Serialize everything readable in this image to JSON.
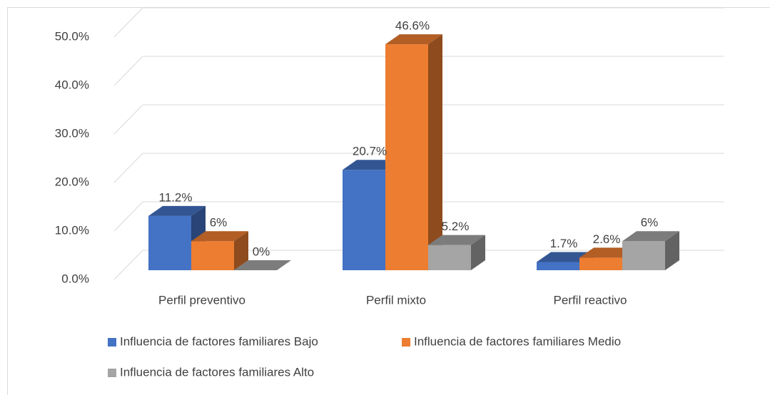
{
  "chart_data": {
    "type": "bar3d",
    "categories": [
      "Perfil preventivo",
      "Perfil mixto",
      "Perfil reactivo"
    ],
    "series": [
      {
        "name": "Influencia de factores familiares Bajo",
        "color": "#4472c4",
        "values": [
          11.2,
          20.7,
          1.7
        ],
        "value_labels": [
          "11.2%",
          "20.7%",
          "1.7%"
        ]
      },
      {
        "name": "Influencia de factores familiares Medio",
        "color": "#ed7d31",
        "values": [
          6,
          46.6,
          2.6
        ],
        "value_labels": [
          "6%",
          "46.6%",
          "2.6%"
        ]
      },
      {
        "name": "Influencia de factores familiares Alto",
        "color": "#a5a5a5",
        "values": [
          0,
          5.2,
          6
        ],
        "value_labels": [
          "0%",
          "5.2%",
          "6%"
        ]
      }
    ],
    "ylim": [
      0,
      50
    ],
    "yticks": [
      {
        "value": 0,
        "label": "0.0%"
      },
      {
        "value": 10,
        "label": "10.0%"
      },
      {
        "value": 20,
        "label": "20.0%"
      },
      {
        "value": 30,
        "label": "30.0%"
      },
      {
        "value": 40,
        "label": "40.0%"
      },
      {
        "value": 50,
        "label": "50.0%"
      }
    ],
    "grid": true,
    "legend": "bottom"
  }
}
